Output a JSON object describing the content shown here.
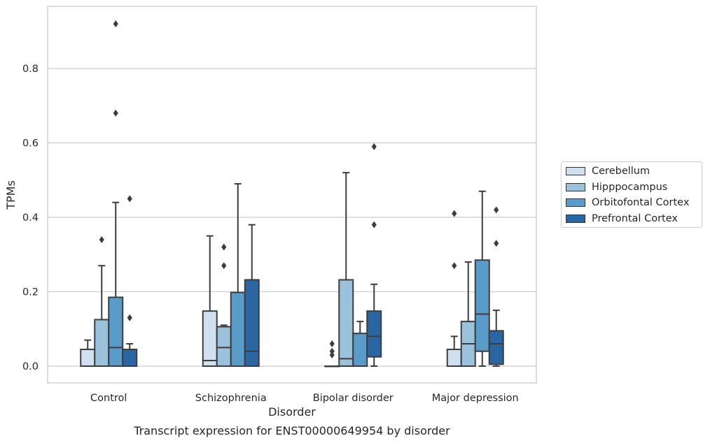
{
  "caption": "Transcript expression for ENST00000649954 by disorder",
  "chart_data": {
    "type": "box",
    "title": "",
    "xlabel": "Disorder",
    "ylabel": "TPMs",
    "ylim": [
      -0.045,
      0.97
    ],
    "yticks": [
      0.0,
      0.2,
      0.4,
      0.6,
      0.8
    ],
    "ytick_labels": [
      "0.0",
      "0.2",
      "0.4",
      "0.6",
      "0.8"
    ],
    "grid": "horizontal",
    "legend_position": "right",
    "categories": [
      "Control",
      "Schizophrenia",
      "Bipolar disorder",
      "Major depression"
    ],
    "series": [
      {
        "name": "Cerebellum",
        "color": "#d0e0f0",
        "boxes": [
          {
            "whislo": 0.0,
            "q1": 0.0,
            "med": 0.0,
            "q3": 0.045,
            "whishi": 0.07,
            "fliers": []
          },
          {
            "whislo": 0.0,
            "q1": 0.0,
            "med": 0.015,
            "q3": 0.148,
            "whishi": 0.35,
            "fliers": []
          },
          {
            "whislo": 0.0,
            "q1": 0.0,
            "med": 0.0,
            "q3": 0.0,
            "whishi": 0.0,
            "fliers": [
              0.03,
              0.04,
              0.06
            ]
          },
          {
            "whislo": 0.0,
            "q1": 0.0,
            "med": 0.0,
            "q3": 0.045,
            "whishi": 0.08,
            "fliers": [
              0.27,
              0.41
            ]
          }
        ]
      },
      {
        "name": "Hipppocampus",
        "color": "#9ac2db",
        "boxes": [
          {
            "whislo": 0.0,
            "q1": 0.0,
            "med": 0.0,
            "q3": 0.125,
            "whishi": 0.27,
            "fliers": [
              0.34
            ]
          },
          {
            "whislo": 0.0,
            "q1": 0.0,
            "med": 0.05,
            "q3": 0.106,
            "whishi": 0.11,
            "fliers": [
              0.27,
              0.32
            ]
          },
          {
            "whislo": 0.0,
            "q1": 0.0,
            "med": 0.02,
            "q3": 0.232,
            "whishi": 0.52,
            "fliers": []
          },
          {
            "whislo": 0.0,
            "q1": 0.0,
            "med": 0.06,
            "q3": 0.12,
            "whishi": 0.28,
            "fliers": []
          }
        ]
      },
      {
        "name": "Orbitofontal Cortex",
        "color": "#5a9cc9",
        "boxes": [
          {
            "whislo": 0.0,
            "q1": 0.0,
            "med": 0.05,
            "q3": 0.185,
            "whishi": 0.44,
            "fliers": [
              0.68,
              0.92
            ]
          },
          {
            "whislo": 0.0,
            "q1": 0.0,
            "med": 0.0,
            "q3": 0.198,
            "whishi": 0.49,
            "fliers": []
          },
          {
            "whislo": 0.0,
            "q1": 0.0,
            "med": 0.0,
            "q3": 0.088,
            "whishi": 0.12,
            "fliers": []
          },
          {
            "whislo": 0.0,
            "q1": 0.04,
            "med": 0.14,
            "q3": 0.285,
            "whishi": 0.47,
            "fliers": []
          }
        ]
      },
      {
        "name": "Prefrontal Cortex",
        "color": "#2a66a4",
        "boxes": [
          {
            "whislo": 0.0,
            "q1": 0.0,
            "med": 0.0,
            "q3": 0.045,
            "whishi": 0.06,
            "fliers": [
              0.13,
              0.45
            ]
          },
          {
            "whislo": 0.0,
            "q1": 0.0,
            "med": 0.04,
            "q3": 0.232,
            "whishi": 0.38,
            "fliers": []
          },
          {
            "whislo": 0.0,
            "q1": 0.025,
            "med": 0.08,
            "q3": 0.148,
            "whishi": 0.22,
            "fliers": [
              0.38,
              0.59
            ]
          },
          {
            "whislo": 0.0,
            "q1": 0.005,
            "med": 0.06,
            "q3": 0.095,
            "whishi": 0.15,
            "fliers": [
              0.33,
              0.42
            ]
          }
        ]
      }
    ]
  }
}
